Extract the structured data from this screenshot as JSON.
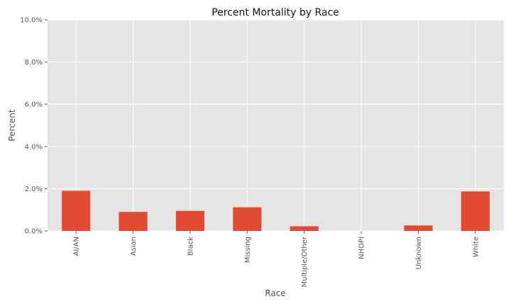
{
  "chart_data": {
    "type": "bar",
    "title": "Percent Mortality by Race",
    "xlabel": "Race",
    "ylabel": "Percent",
    "categories": [
      "AI/AN",
      "Asian",
      "Black",
      "Missing",
      "Multiple/Other",
      "NHOPI",
      "Unknown",
      "White"
    ],
    "values": [
      1.9,
      0.9,
      0.95,
      1.12,
      0.22,
      0.0,
      0.26,
      1.87
    ],
    "ylim": [
      0,
      10
    ],
    "yticks": [
      0,
      2,
      4,
      6,
      8,
      10
    ],
    "ytick_labels": [
      "0.0%",
      "2.0%",
      "4.0%",
      "6.0%",
      "8.0%",
      "10.0%"
    ],
    "grid": true,
    "colors": {
      "bar": "#E24A33",
      "plot_background": "#E5E5E5",
      "grid": "#FFFFFF"
    }
  }
}
